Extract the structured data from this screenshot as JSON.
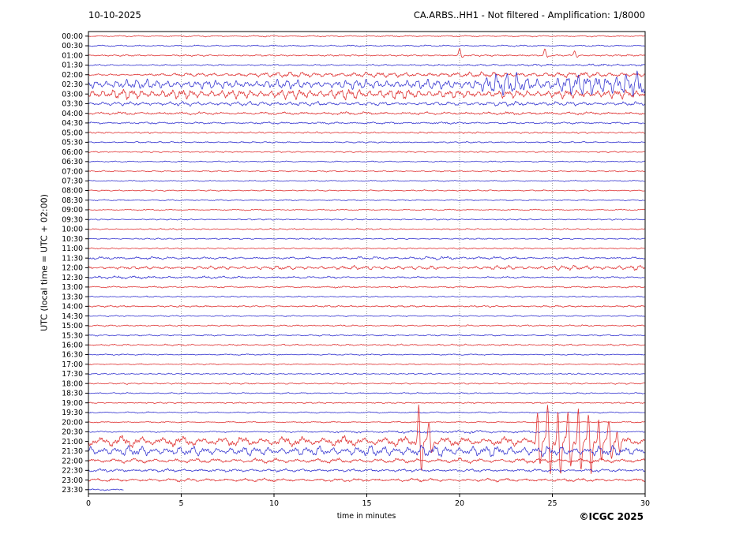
{
  "header": {
    "date": "10-10-2025",
    "title": "CA.ARBS..HH1 - Not filtered - Amplification: 1/8000"
  },
  "footer": {
    "credit": "©ICGC 2025"
  },
  "chart_data": {
    "type": "line",
    "subtype": "helicorder-seismogram",
    "date": "10-10-2025",
    "title": "CA.ARBS..HH1 - Not filtered - Amplification: 1/8000",
    "xlabel": "time in minutes",
    "ylabel": "UTC (local time = UTC + 02:00)",
    "x_range": [
      0,
      30
    ],
    "x_ticks": [
      0,
      5,
      10,
      15,
      20,
      25,
      30
    ],
    "grid_minutes": [
      5,
      10,
      15,
      20,
      25
    ],
    "grid_on": true,
    "legend": "none",
    "colors": {
      "red": "#dd2222",
      "blue": "#2323cc",
      "grid": "#888888",
      "axis": "#000000"
    },
    "row_duration_minutes": 30,
    "rows": [
      {
        "label": "00:00",
        "color": "red",
        "segments": [
          [
            0,
            30,
            0.8
          ]
        ]
      },
      {
        "label": "00:30",
        "color": "blue",
        "segments": [
          [
            0,
            30,
            0.8
          ]
        ]
      },
      {
        "label": "01:00",
        "color": "red",
        "segments": [
          [
            0,
            30,
            0.9
          ]
        ],
        "spikes": [
          [
            20.0,
            9,
            3
          ],
          [
            24.6,
            8,
            2.5
          ],
          [
            26.2,
            6,
            2
          ]
        ]
      },
      {
        "label": "01:30",
        "color": "blue",
        "segments": [
          [
            0,
            26,
            0.8
          ],
          [
            26,
            30,
            1.3
          ]
        ]
      },
      {
        "label": "02:00",
        "color": "red",
        "segments": [
          [
            0,
            5,
            1.0
          ],
          [
            5,
            9,
            2.2
          ],
          [
            9,
            14,
            3.4
          ],
          [
            14,
            22,
            2.8
          ],
          [
            22,
            30,
            3.2
          ]
        ]
      },
      {
        "label": "02:30",
        "color": "blue",
        "segments": [
          [
            0,
            3,
            6
          ],
          [
            3,
            10,
            5
          ],
          [
            10,
            18,
            5.5
          ],
          [
            18,
            22,
            6
          ],
          [
            22,
            24,
            15
          ],
          [
            24,
            25.5,
            7
          ],
          [
            25.5,
            30,
            16
          ]
        ]
      },
      {
        "label": "03:00",
        "color": "red",
        "segments": [
          [
            0,
            4,
            6
          ],
          [
            4,
            12,
            5
          ],
          [
            12,
            17,
            6.5
          ],
          [
            17,
            24,
            4.5
          ],
          [
            24,
            30,
            5
          ]
        ]
      },
      {
        "label": "03:30",
        "color": "blue",
        "segments": [
          [
            0,
            6,
            2.2
          ],
          [
            6,
            14,
            2.6
          ],
          [
            14,
            22,
            1.8
          ],
          [
            22,
            24,
            3.0
          ],
          [
            24,
            30,
            2.0
          ]
        ]
      },
      {
        "label": "04:00",
        "color": "red",
        "segments": [
          [
            0,
            30,
            1.5
          ]
        ]
      },
      {
        "label": "04:30",
        "color": "blue",
        "segments": [
          [
            0,
            30,
            1.1
          ]
        ]
      },
      {
        "label": "05:00",
        "color": "red",
        "segments": [
          [
            0,
            30,
            0.9
          ]
        ]
      },
      {
        "label": "05:30",
        "color": "blue",
        "segments": [
          [
            0,
            30,
            0.8
          ]
        ]
      },
      {
        "label": "06:00",
        "color": "red",
        "segments": [
          [
            0,
            30,
            0.7
          ]
        ]
      },
      {
        "label": "06:30",
        "color": "blue",
        "segments": [
          [
            0,
            30,
            0.7
          ]
        ]
      },
      {
        "label": "07:00",
        "color": "red",
        "segments": [
          [
            0,
            30,
            0.7
          ]
        ]
      },
      {
        "label": "07:30",
        "color": "blue",
        "segments": [
          [
            0,
            30,
            0.7
          ]
        ]
      },
      {
        "label": "08:00",
        "color": "red",
        "segments": [
          [
            0,
            30,
            0.7
          ]
        ]
      },
      {
        "label": "08:30",
        "color": "blue",
        "segments": [
          [
            0,
            30,
            0.7
          ]
        ]
      },
      {
        "label": "09:00",
        "color": "red",
        "segments": [
          [
            0,
            30,
            0.7
          ]
        ]
      },
      {
        "label": "09:30",
        "color": "blue",
        "segments": [
          [
            0,
            30,
            0.7
          ]
        ]
      },
      {
        "label": "10:00",
        "color": "red",
        "segments": [
          [
            0,
            30,
            0.7
          ]
        ]
      },
      {
        "label": "10:30",
        "color": "blue",
        "segments": [
          [
            0,
            30,
            0.7
          ]
        ]
      },
      {
        "label": "11:00",
        "color": "red",
        "segments": [
          [
            0,
            30,
            0.8
          ]
        ]
      },
      {
        "label": "11:30",
        "color": "blue",
        "segments": [
          [
            0,
            2,
            1.6
          ],
          [
            2,
            17,
            1.1
          ],
          [
            17,
            21,
            1.9
          ],
          [
            21,
            30,
            1.1
          ]
        ]
      },
      {
        "label": "12:00",
        "color": "red",
        "segments": [
          [
            0,
            9,
            1.6
          ],
          [
            9,
            12,
            2.4
          ],
          [
            12,
            15,
            2.0
          ],
          [
            15,
            18,
            2.6
          ],
          [
            18,
            20,
            1.6
          ],
          [
            20,
            30,
            2.8
          ]
        ]
      },
      {
        "label": "12:30",
        "color": "blue",
        "segments": [
          [
            0,
            6,
            1.5
          ],
          [
            6,
            30,
            0.9
          ]
        ]
      },
      {
        "label": "13:00",
        "color": "red",
        "segments": [
          [
            0,
            30,
            0.9
          ]
        ]
      },
      {
        "label": "13:30",
        "color": "blue",
        "segments": [
          [
            0,
            30,
            0.7
          ]
        ]
      },
      {
        "label": "14:00",
        "color": "red",
        "segments": [
          [
            0,
            30,
            0.9
          ]
        ]
      },
      {
        "label": "14:30",
        "color": "blue",
        "segments": [
          [
            0,
            30,
            0.7
          ]
        ]
      },
      {
        "label": "15:00",
        "color": "red",
        "segments": [
          [
            0,
            30,
            0.8
          ]
        ]
      },
      {
        "label": "15:30",
        "color": "blue",
        "segments": [
          [
            0,
            30,
            0.8
          ]
        ]
      },
      {
        "label": "16:00",
        "color": "red",
        "segments": [
          [
            0,
            30,
            0.9
          ]
        ]
      },
      {
        "label": "16:30",
        "color": "blue",
        "segments": [
          [
            0,
            30,
            0.7
          ]
        ]
      },
      {
        "label": "17:00",
        "color": "red",
        "segments": [
          [
            0,
            30,
            0.7
          ]
        ]
      },
      {
        "label": "17:30",
        "color": "blue",
        "segments": [
          [
            0,
            30,
            0.7
          ]
        ]
      },
      {
        "label": "18:00",
        "color": "red",
        "segments": [
          [
            0,
            30,
            0.8
          ]
        ]
      },
      {
        "label": "18:30",
        "color": "blue",
        "segments": [
          [
            0,
            30,
            0.7
          ]
        ]
      },
      {
        "label": "19:00",
        "color": "red",
        "segments": [
          [
            0,
            30,
            0.7
          ]
        ]
      },
      {
        "label": "19:30",
        "color": "blue",
        "segments": [
          [
            0,
            30,
            0.8
          ]
        ]
      },
      {
        "label": "20:00",
        "color": "red",
        "segments": [
          [
            0,
            30,
            0.7
          ]
        ]
      },
      {
        "label": "20:30",
        "color": "blue",
        "segments": [
          [
            0,
            19,
            0.8
          ],
          [
            19,
            22,
            1.8
          ],
          [
            22,
            30,
            0.9
          ]
        ]
      },
      {
        "label": "21:00",
        "color": "red",
        "segments": [
          [
            0,
            2,
            7
          ],
          [
            2,
            10,
            5.5
          ],
          [
            10,
            17,
            6
          ],
          [
            17,
            30,
            5
          ]
        ],
        "spikes": [
          [
            17.8,
            48,
            40
          ],
          [
            18.35,
            24,
            12
          ],
          [
            24.2,
            38,
            30
          ],
          [
            24.75,
            46,
            40
          ],
          [
            25.3,
            40,
            44
          ],
          [
            25.85,
            36,
            30
          ],
          [
            26.4,
            44,
            38
          ],
          [
            26.95,
            34,
            40
          ],
          [
            27.5,
            30,
            26
          ],
          [
            28.05,
            24,
            20
          ],
          [
            28.5,
            16,
            12
          ]
        ]
      },
      {
        "label": "21:30",
        "color": "blue",
        "segments": [
          [
            0,
            4,
            6
          ],
          [
            4,
            15,
            5
          ],
          [
            15,
            21,
            7
          ],
          [
            21,
            30,
            6
          ]
        ]
      },
      {
        "label": "22:00",
        "color": "red",
        "segments": [
          [
            0,
            30,
            2.8
          ]
        ]
      },
      {
        "label": "22:30",
        "color": "blue",
        "segments": [
          [
            0,
            30,
            1.6
          ]
        ]
      },
      {
        "label": "23:00",
        "color": "red",
        "segments": [
          [
            0,
            30,
            1.8
          ]
        ]
      },
      {
        "label": "23:30",
        "color": "blue",
        "segments": [
          [
            0,
            1.9,
            0.8
          ]
        ],
        "end": 1.9
      }
    ]
  }
}
